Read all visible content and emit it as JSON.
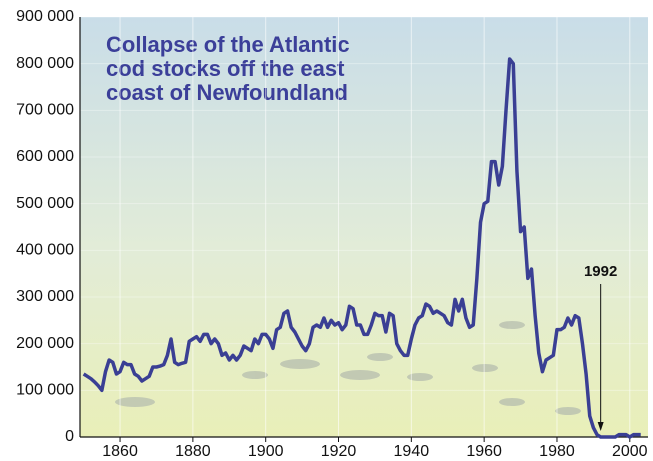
{
  "chart_data": {
    "type": "line",
    "annotation_lines": [
      "Collapse of the Atlantic",
      "cod stocks off the east",
      "coast of Newfoundland"
    ],
    "marker": {
      "text": "1992",
      "x": 1992
    },
    "x": [
      1850,
      1851,
      1852,
      1853,
      1854,
      1855,
      1856,
      1857,
      1858,
      1859,
      1860,
      1861,
      1862,
      1863,
      1864,
      1865,
      1866,
      1867,
      1868,
      1869,
      1870,
      1871,
      1872,
      1873,
      1874,
      1875,
      1876,
      1877,
      1878,
      1879,
      1880,
      1881,
      1882,
      1883,
      1884,
      1885,
      1886,
      1887,
      1888,
      1889,
      1890,
      1891,
      1892,
      1893,
      1894,
      1895,
      1896,
      1897,
      1898,
      1899,
      1900,
      1901,
      1902,
      1903,
      1904,
      1905,
      1906,
      1907,
      1908,
      1909,
      1910,
      1911,
      1912,
      1913,
      1914,
      1915,
      1916,
      1917,
      1918,
      1919,
      1920,
      1921,
      1922,
      1923,
      1924,
      1925,
      1926,
      1927,
      1928,
      1929,
      1930,
      1931,
      1932,
      1933,
      1934,
      1935,
      1936,
      1937,
      1938,
      1939,
      1940,
      1941,
      1942,
      1943,
      1944,
      1945,
      1946,
      1947,
      1948,
      1949,
      1950,
      1951,
      1952,
      1953,
      1954,
      1955,
      1956,
      1957,
      1958,
      1959,
      1960,
      1961,
      1962,
      1963,
      1964,
      1965,
      1966,
      1967,
      1968,
      1969,
      1970,
      1971,
      1972,
      1973,
      1974,
      1975,
      1976,
      1977,
      1978,
      1979,
      1980,
      1981,
      1982,
      1983,
      1984,
      1985,
      1986,
      1987,
      1988,
      1989,
      1990,
      1991,
      1992,
      1993,
      1994,
      1995,
      1996,
      1997,
      1998,
      1999,
      2000,
      2001,
      2002,
      2003
    ],
    "series": [
      {
        "color": "#3a3f94",
        "values": [
          135000,
          130000,
          125000,
          118000,
          110000,
          100000,
          140000,
          165000,
          160000,
          135000,
          140000,
          160000,
          155000,
          155000,
          135000,
          130000,
          120000,
          125000,
          130000,
          150000,
          150000,
          152000,
          155000,
          175000,
          210000,
          160000,
          155000,
          158000,
          160000,
          205000,
          210000,
          215000,
          205000,
          220000,
          220000,
          200000,
          210000,
          200000,
          175000,
          180000,
          165000,
          175000,
          165000,
          175000,
          195000,
          190000,
          185000,
          210000,
          200000,
          220000,
          220000,
          210000,
          190000,
          230000,
          235000,
          265000,
          270000,
          235000,
          225000,
          210000,
          195000,
          185000,
          200000,
          235000,
          240000,
          235000,
          255000,
          235000,
          250000,
          240000,
          245000,
          230000,
          240000,
          280000,
          275000,
          240000,
          240000,
          220000,
          220000,
          240000,
          265000,
          260000,
          260000,
          225000,
          265000,
          260000,
          200000,
          185000,
          175000,
          175000,
          210000,
          240000,
          255000,
          260000,
          285000,
          280000,
          265000,
          270000,
          265000,
          260000,
          245000,
          240000,
          295000,
          270000,
          295000,
          255000,
          235000,
          240000,
          340000,
          460000,
          500000,
          505000,
          590000,
          590000,
          540000,
          580000,
          700000,
          810000,
          800000,
          570000,
          440000,
          450000,
          340000,
          360000,
          260000,
          180000,
          140000,
          165000,
          170000,
          175000,
          230000,
          230000,
          235000,
          255000,
          240000,
          260000,
          255000,
          200000,
          135000,
          45000,
          20000,
          5000,
          0,
          0,
          0,
          0,
          0,
          5000,
          5000,
          5000,
          0,
          5000,
          5000,
          5000
        ]
      }
    ],
    "xlim": [
      1849,
      2005
    ],
    "xticks": [
      1860,
      1880,
      1900,
      1920,
      1940,
      1960,
      1980,
      2000
    ],
    "ylim": [
      0,
      900000
    ],
    "yticks": [
      0,
      {
        "value": 100000,
        "label": "100 000"
      },
      {
        "value": 200000,
        "label": "200 000"
      },
      {
        "value": 300000,
        "label": "300 000"
      },
      {
        "value": 400000,
        "label": "400 000"
      },
      {
        "value": 500000,
        "label": "500 000"
      },
      {
        "value": 600000,
        "label": "600 000"
      },
      {
        "value": 700000,
        "label": "700 000"
      },
      {
        "value": 800000,
        "label": "800 000"
      },
      {
        "value": 900000,
        "label": "900 000"
      }
    ],
    "grid": true
  }
}
